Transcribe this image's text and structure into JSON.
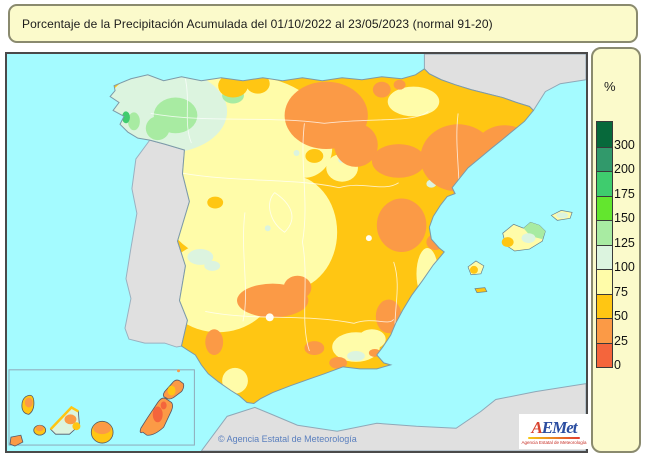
{
  "title": "Porcentaje de la Precipitación Acumulada del 01/10/2022 al 23/05/2023 (normal 91-20)",
  "legend": {
    "unit_label": "%",
    "ticks": [
      "300",
      "200",
      "175",
      "150",
      "125",
      "100",
      "75",
      "50",
      "25",
      "0"
    ],
    "colors": [
      "#07693B",
      "#31996B",
      "#3FCC6E",
      "#63E62E",
      "#A8EBA2",
      "#DCF4DF",
      "#FFFCA9",
      "#FFC613",
      "#FB9A46",
      "#F4653C"
    ]
  },
  "map": {
    "attribution": "© Agencia Estatal de Meteorología"
  },
  "logo": {
    "initial": "A",
    "rest": "EMet",
    "tagline": "Agencia Estatal de Meteorología"
  },
  "colors": {
    "sea": "#A4FBFF",
    "outside_land": "#E0E0E0",
    "pale_yellow": "#FFFCA9",
    "amber": "#FFC613",
    "orange": "#FB9A46",
    "red_orange": "#F4653C",
    "mint": "#DCF4DF",
    "light_green": "#A8EBA2",
    "bright_green": "#63E62E",
    "mid_green": "#3FCC6E",
    "sea_green": "#31996B",
    "dark_green": "#07693B",
    "panel_bg": "#FBFACB",
    "panel_border": "#8A8A6E"
  }
}
